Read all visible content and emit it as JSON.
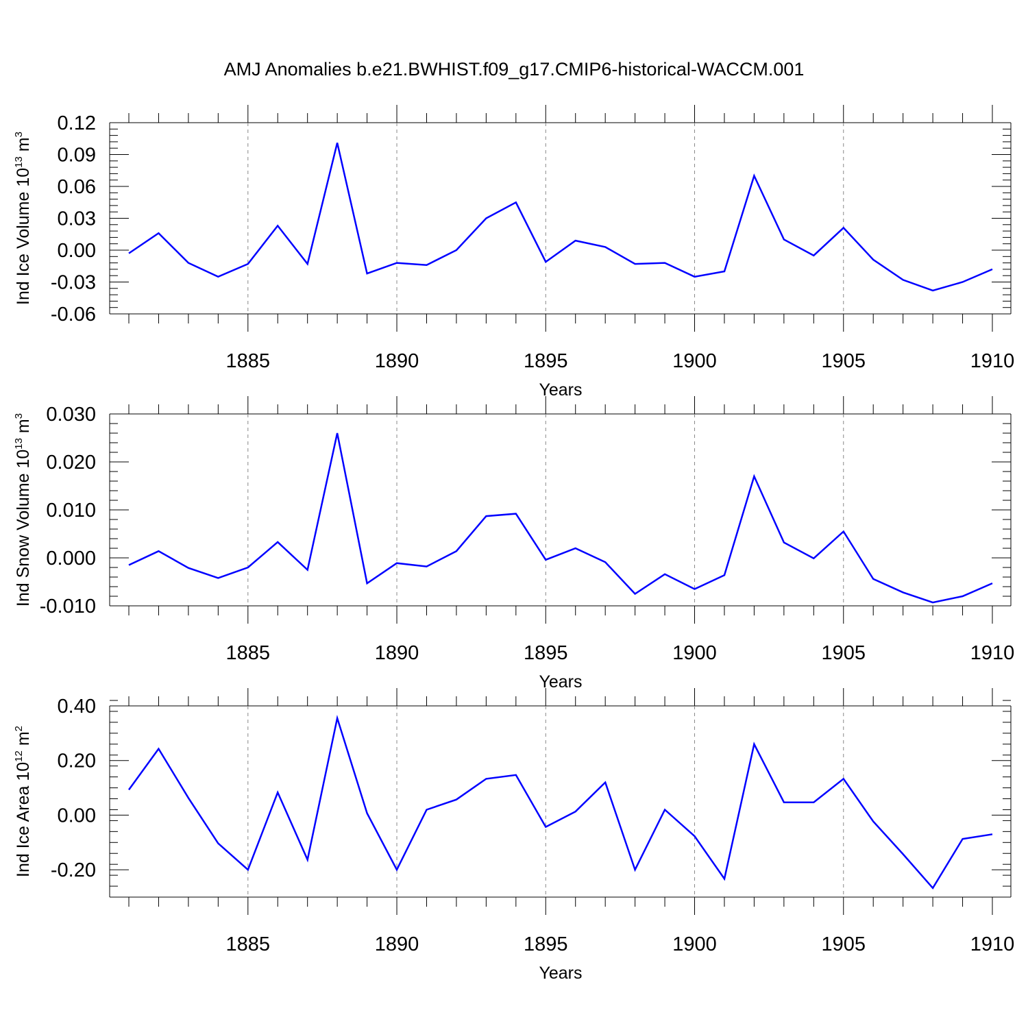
{
  "title": "AMJ Anomalies b.e21.BWHIST.f09_g17.CMIP6-historical-WACCM.001",
  "line_color": "#0000ff",
  "chart_data": [
    {
      "type": "line",
      "xlabel": "Years",
      "ylabel": "Ind Ice Volume 10",
      "ylabel_exp": "13",
      "ylabel_unit": " m",
      "ylabel_unit_exp": "3",
      "xlim": [
        1881,
        1910
      ],
      "ylim": [
        -0.06,
        0.12
      ],
      "x_ticks": [
        1885,
        1890,
        1895,
        1900,
        1905,
        1910
      ],
      "y_ticks": [
        "-0.06",
        "-0.03",
        "0.00",
        "0.03",
        "0.06",
        "0.09",
        "0.12"
      ],
      "y_tick_values": [
        -0.06,
        -0.03,
        0.0,
        0.03,
        0.06,
        0.09,
        0.12
      ],
      "y_minor_step": 0.006,
      "grid": "vertical dashed at major x ticks",
      "series": [
        {
          "x": [
            1881,
            1882,
            1883,
            1884,
            1885,
            1886,
            1887,
            1888,
            1889,
            1890,
            1891,
            1892,
            1893,
            1894,
            1895,
            1896,
            1897,
            1898,
            1899,
            1900,
            1901,
            1902,
            1903,
            1904,
            1905,
            1906,
            1907,
            1908,
            1909,
            1910
          ],
          "values": [
            -0.003,
            0.016,
            -0.012,
            -0.025,
            -0.013,
            0.023,
            -0.013,
            0.101,
            -0.022,
            -0.012,
            -0.014,
            0.0,
            0.03,
            0.045,
            -0.011,
            0.009,
            0.003,
            -0.013,
            -0.012,
            -0.025,
            -0.02,
            0.07,
            0.01,
            -0.005,
            0.021,
            -0.009,
            -0.028,
            -0.038,
            -0.03,
            -0.018
          ]
        }
      ]
    },
    {
      "type": "line",
      "xlabel": "Years",
      "ylabel": "Ind Snow Volume 10",
      "ylabel_exp": "13",
      "ylabel_unit": " m",
      "ylabel_unit_exp": "3",
      "xlim": [
        1881,
        1910
      ],
      "ylim": [
        -0.01,
        0.03
      ],
      "x_ticks": [
        1885,
        1890,
        1895,
        1900,
        1905,
        1910
      ],
      "y_ticks": [
        "-0.010",
        "0.000",
        "0.010",
        "0.020",
        "0.030"
      ],
      "y_tick_values": [
        -0.01,
        0.0,
        0.01,
        0.02,
        0.03
      ],
      "y_minor_step": 0.002,
      "grid": "vertical dashed at major x ticks",
      "series": [
        {
          "x": [
            1881,
            1882,
            1883,
            1884,
            1885,
            1886,
            1887,
            1888,
            1889,
            1890,
            1891,
            1892,
            1893,
            1894,
            1895,
            1896,
            1897,
            1898,
            1899,
            1900,
            1901,
            1902,
            1903,
            1904,
            1905,
            1906,
            1907,
            1908,
            1909,
            1910
          ],
          "values": [
            -0.0015,
            0.0014,
            -0.0021,
            -0.0042,
            -0.002,
            0.0033,
            -0.0025,
            0.026,
            -0.0053,
            -0.0011,
            -0.0018,
            0.0014,
            0.0087,
            0.0092,
            -0.0004,
            0.002,
            -0.0009,
            -0.0075,
            -0.0034,
            -0.0065,
            -0.0036,
            0.017,
            0.0032,
            -0.0001,
            0.0055,
            -0.0044,
            -0.0072,
            -0.0093,
            -0.008,
            -0.0053
          ]
        }
      ]
    },
    {
      "type": "line",
      "xlabel": "Years",
      "ylabel": "Ind Ice Area 10",
      "ylabel_exp": "12",
      "ylabel_unit": " m",
      "ylabel_unit_exp": "2",
      "xlim": [
        1881,
        1910
      ],
      "ylim": [
        -0.3,
        0.4
      ],
      "x_ticks": [
        1885,
        1890,
        1895,
        1900,
        1905,
        1910
      ],
      "y_ticks": [
        "-0.20",
        "0.00",
        "0.20",
        "0.40"
      ],
      "y_tick_values": [
        -0.2,
        0.0,
        0.2,
        0.4
      ],
      "y_minor_step": 0.04,
      "grid": "vertical dashed at major x ticks",
      "series": [
        {
          "x": [
            1881,
            1882,
            1883,
            1884,
            1885,
            1886,
            1887,
            1888,
            1889,
            1890,
            1891,
            1892,
            1893,
            1894,
            1895,
            1896,
            1897,
            1898,
            1899,
            1900,
            1901,
            1902,
            1903,
            1904,
            1905,
            1906,
            1907,
            1908,
            1909,
            1910
          ],
          "values": [
            0.093,
            0.243,
            0.063,
            -0.103,
            -0.2,
            0.083,
            -0.163,
            0.355,
            0.007,
            -0.2,
            0.02,
            0.057,
            0.133,
            0.147,
            -0.043,
            0.013,
            0.12,
            -0.2,
            0.02,
            -0.077,
            -0.233,
            0.26,
            0.047,
            0.047,
            0.133,
            -0.023,
            -0.143,
            -0.267,
            -0.087,
            -0.07
          ]
        }
      ]
    }
  ]
}
